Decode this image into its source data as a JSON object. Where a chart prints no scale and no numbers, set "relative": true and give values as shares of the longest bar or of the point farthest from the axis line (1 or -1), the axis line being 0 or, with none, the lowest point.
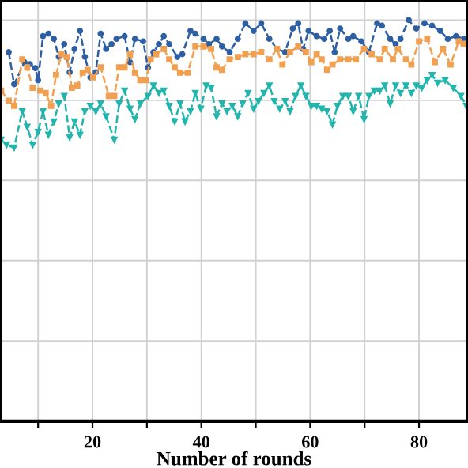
{
  "chart_data": {
    "type": "line",
    "relative": true,
    "xlabel": "Number of rounds",
    "xlim": [
      3,
      89
    ],
    "xticks": [
      {
        "value": 10,
        "label": null
      },
      20,
      {
        "value": 30,
        "label": null
      },
      40,
      {
        "value": 50,
        "label": null
      },
      60,
      {
        "value": 70,
        "label": null
      },
      80
    ],
    "grid": true,
    "line_style": "dashed",
    "series": [
      {
        "color": "#2e5fa3",
        "marker": "circle",
        "x": [
          4.6,
          5.6,
          7.5,
          8.5,
          9.5,
          10,
          10.9,
          11.9,
          12.9,
          13.8,
          14.8,
          15.8,
          16.7,
          17.7,
          18.6,
          19.6,
          20.6,
          21.5,
          22.5,
          23.5,
          24.4,
          25.9,
          26.9,
          27.8,
          29.3,
          30.2,
          31.2,
          32.2,
          33.1,
          34.1,
          35.6,
          36.5,
          38,
          38.9,
          40.4,
          41.4,
          42.8,
          43.8,
          45.2,
          46.7,
          48.1,
          49.6,
          51,
          52.5,
          53.9,
          55.4,
          56.8,
          57.8,
          58.7,
          59.7,
          61.2,
          62.6,
          63.6,
          64.5,
          65.5,
          67,
          67.9,
          69.4,
          70.8,
          72.3,
          73.2,
          74.7,
          75.7,
          76.6,
          78.1,
          79.5,
          81,
          82.4,
          83.9,
          85.3,
          86.8,
          88.2
        ],
        "values": [
          0.92,
          0.84,
          0.895,
          0.89,
          0.88,
          0.85,
          0.96,
          0.966,
          0.953,
          0.908,
          0.94,
          0.87,
          0.928,
          0.973,
          0.908,
          0.857,
          0.87,
          0.966,
          0.928,
          0.94,
          0.953,
          0.96,
          0.895,
          0.953,
          0.947,
          0.882,
          0.92,
          0.94,
          0.96,
          0.94,
          0.908,
          0.915,
          0.973,
          0.966,
          0.953,
          0.94,
          0.953,
          0.934,
          0.92,
          0.953,
          0.992,
          0.973,
          0.992,
          0.953,
          0.928,
          0.92,
          0.979,
          0.992,
          0.928,
          0.973,
          0.96,
          0.953,
          0.973,
          0.92,
          0.979,
          0.953,
          0.96,
          0.947,
          0.92,
          0.992,
          0.986,
          0.953,
          0.94,
          0.953,
          1.0,
          0.979,
          0.992,
          0.986,
          0.973,
          0.953,
          0.96,
          0.953
        ]
      },
      {
        "color": "#f0a050",
        "marker": "square",
        "x": [
          3.2,
          4.6,
          5.6,
          7.1,
          8,
          9,
          10.4,
          11.4,
          12.4,
          13.3,
          14.3,
          15.3,
          16.2,
          17.2,
          18.2,
          19.1,
          20.1,
          21.5,
          23,
          24,
          24.9,
          25.9,
          26.9,
          27.8,
          28.8,
          29.8,
          30.7,
          31.7,
          33.1,
          34.1,
          35.1,
          36.1,
          37.5,
          38.9,
          40.4,
          41.8,
          42.8,
          43.8,
          45.2,
          46.7,
          48.1,
          49.6,
          51,
          52.5,
          53.9,
          54.9,
          56.3,
          57.8,
          59.2,
          60.2,
          61.2,
          62.1,
          63.1,
          64.1,
          65.5,
          67,
          68.4,
          69.9,
          71.3,
          72.8,
          73.7,
          75.2,
          76.1,
          77.6,
          78.6,
          80,
          81.5,
          82.9,
          84.4,
          85.8,
          87.3,
          88.2
        ],
        "values": [
          0.824,
          0.799,
          0.786,
          0.902,
          0.882,
          0.831,
          0.824,
          0.818,
          0.786,
          0.863,
          0.915,
          0.908,
          0.831,
          0.837,
          0.869,
          0.876,
          0.857,
          0.882,
          0.811,
          0.811,
          0.882,
          0.882,
          0.915,
          0.869,
          0.85,
          0.85,
          0.902,
          0.915,
          0.928,
          0.902,
          0.882,
          0.869,
          0.869,
          0.934,
          0.934,
          0.928,
          0.882,
          0.876,
          0.902,
          0.908,
          0.915,
          0.915,
          0.92,
          0.902,
          0.928,
          0.889,
          0.92,
          0.934,
          0.92,
          0.895,
          0.915,
          0.902,
          0.876,
          0.889,
          0.902,
          0.902,
          0.902,
          0.928,
          0.915,
          0.902,
          0.928,
          0.902,
          0.928,
          0.902,
          0.889,
          0.947,
          0.953,
          0.895,
          0.928,
          0.889,
          0.947,
          0.941
        ]
      },
      {
        "color": "#22b5ad",
        "marker": "triangle",
        "x": [
          3.2,
          4.2,
          5.6,
          7.1,
          8,
          9,
          10,
          10.9,
          11.9,
          12.9,
          13.8,
          14.8,
          15.8,
          16.7,
          17.7,
          18.6,
          19.6,
          20.6,
          21.5,
          22.5,
          24,
          24.9,
          25.9,
          26.9,
          27.8,
          28.8,
          30.2,
          31.2,
          32.2,
          33.1,
          34.1,
          35.1,
          36.1,
          37,
          38,
          38.9,
          39.9,
          40.9,
          41.8,
          42.8,
          43.8,
          44.7,
          45.7,
          46.7,
          47.6,
          48.6,
          49.6,
          50.5,
          51.5,
          52.5,
          53.4,
          54.4,
          55.4,
          56.3,
          57.3,
          58.3,
          59.2,
          60.2,
          61.2,
          62.1,
          63.1,
          64.1,
          65,
          66,
          67,
          67.9,
          68.9,
          69.9,
          70.8,
          71.8,
          72.8,
          73.7,
          74.7,
          75.7,
          76.6,
          77.6,
          78.6,
          79.5,
          80.5,
          81.5,
          82.4,
          83.4,
          84.8,
          86.3,
          87.7,
          88.7
        ],
        "values": [
          0.702,
          0.689,
          0.682,
          0.773,
          0.734,
          0.689,
          0.721,
          0.773,
          0.714,
          0.747,
          0.792,
          0.811,
          0.708,
          0.747,
          0.714,
          0.773,
          0.786,
          0.773,
          0.792,
          0.76,
          0.702,
          0.792,
          0.824,
          0.779,
          0.753,
          0.792,
          0.811,
          0.837,
          0.818,
          0.824,
          0.786,
          0.747,
          0.792,
          0.747,
          0.773,
          0.818,
          0.779,
          0.837,
          0.831,
          0.76,
          0.792,
          0.773,
          0.786,
          0.76,
          0.792,
          0.818,
          0.779,
          0.798,
          0.818,
          0.837,
          0.798,
          0.779,
          0.798,
          0.773,
          0.811,
          0.837,
          0.811,
          0.786,
          0.786,
          0.779,
          0.773,
          0.74,
          0.786,
          0.811,
          0.811,
          0.773,
          0.811,
          0.753,
          0.811,
          0.824,
          0.824,
          0.837,
          0.792,
          0.837,
          0.818,
          0.837,
          0.818,
          0.837,
          0.831,
          0.85,
          0.863,
          0.844,
          0.85,
          0.831,
          0.811,
          0.786
        ]
      }
    ]
  }
}
